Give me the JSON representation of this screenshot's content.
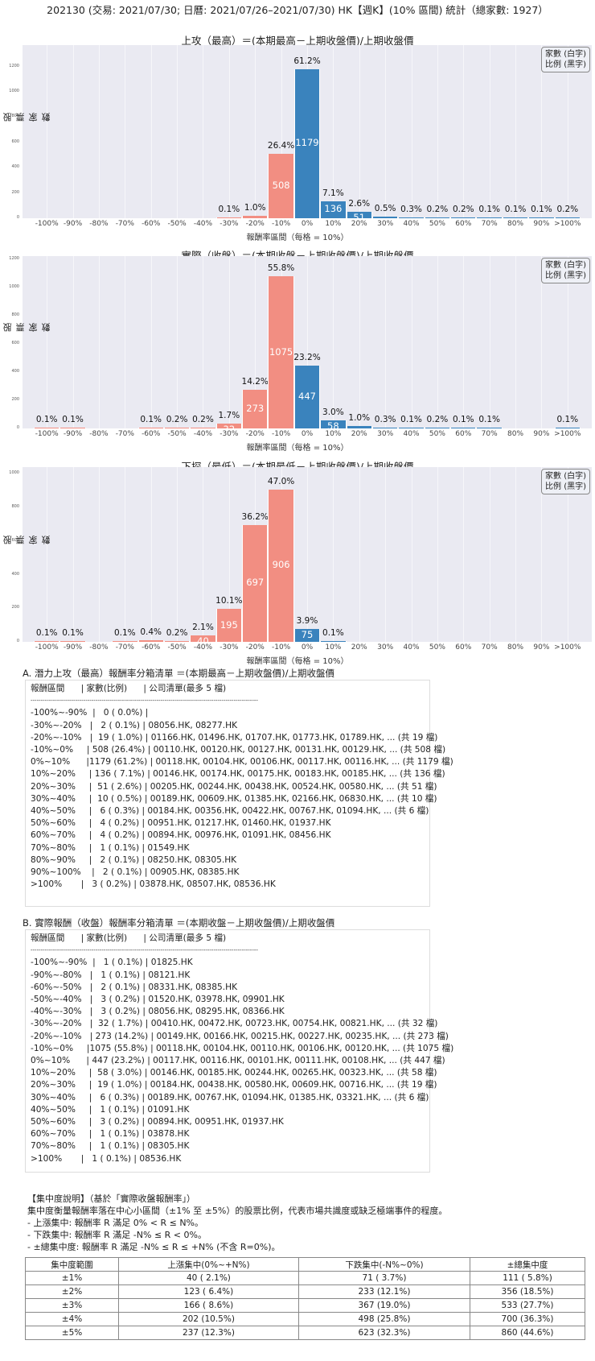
{
  "header": {
    "title": "202130 (交易: 2021/07/30; 日曆: 2021/07/26–2021/07/30) HK【週K】(10% 區間) 統計（總家數: 1927）"
  },
  "colors": {
    "negative": "#f28e82",
    "positive": "#3a83bd",
    "plot_bg": "#eaeaf2"
  },
  "legend": {
    "line1": "家數 (白字)",
    "line2": "比例 (黑字)"
  },
  "chart_data": [
    {
      "type": "bar",
      "title": "上攻（最高）＝(本期最高－上期收盤價)/上期收盤價",
      "xlabel": "報酬率區間（每格 = 10%）",
      "ylabel": "股票家數",
      "categories": [
        "-100%",
        "-90%",
        "-80%",
        "-70%",
        "-60%",
        "-50%",
        "-40%",
        "-30%",
        "-20%",
        "-10%",
        "0%",
        "10%",
        "20%",
        "30%",
        "40%",
        "50%",
        "60%",
        "70%",
        "80%",
        "90%",
        ">100%"
      ],
      "values": [
        0,
        0,
        0,
        0,
        0,
        0,
        0,
        2,
        19,
        508,
        1179,
        136,
        51,
        10,
        6,
        4,
        4,
        1,
        2,
        2,
        3
      ],
      "percent_labels": [
        "",
        "",
        "",
        "",
        "",
        "",
        "",
        "0.1%",
        "1.0%",
        "26.4%",
        "61.2%",
        "7.1%",
        "2.6%",
        "0.5%",
        "0.3%",
        "0.2%",
        "0.2%",
        "0.1%",
        "0.1%",
        "0.1%",
        "0.2%"
      ],
      "yticks": [
        0,
        200,
        400,
        600,
        800,
        1000,
        1200
      ],
      "ylim": [
        0,
        1370
      ],
      "grid": true
    },
    {
      "type": "bar",
      "title": "實際（收盤）＝(本期收盤－上期收盤價)/上期收盤價",
      "xlabel": "報酬率區間（每格 = 10%）",
      "ylabel": "股票家數",
      "categories": [
        "-100%",
        "-90%",
        "-80%",
        "-70%",
        "-60%",
        "-50%",
        "-40%",
        "-30%",
        "-20%",
        "-10%",
        "0%",
        "10%",
        "20%",
        "30%",
        "40%",
        "50%",
        "60%",
        "70%",
        "80%",
        "90%",
        ">100%"
      ],
      "values": [
        1,
        1,
        0,
        0,
        2,
        3,
        3,
        32,
        273,
        1075,
        447,
        58,
        19,
        6,
        1,
        3,
        1,
        1,
        0,
        0,
        1
      ],
      "percent_labels": [
        "0.1%",
        "0.1%",
        "",
        "",
        "0.1%",
        "0.2%",
        "0.2%",
        "1.7%",
        "14.2%",
        "55.8%",
        "23.2%",
        "3.0%",
        "1.0%",
        "0.3%",
        "0.1%",
        "0.2%",
        "0.1%",
        "0.1%",
        "",
        "",
        "0.1%"
      ],
      "yticks": [
        0,
        200,
        400,
        600,
        800,
        1000,
        1200
      ],
      "ylim": [
        0,
        1220
      ],
      "grid": true
    },
    {
      "type": "bar",
      "title": "下探（最低）＝(本期最低－上期收盤價)/上期收盤價",
      "xlabel": "報酬率區間（每格 = 10%）",
      "ylabel": "股票家數",
      "categories": [
        "-100%",
        "-90%",
        "-80%",
        "-70%",
        "-60%",
        "-50%",
        "-40%",
        "-30%",
        "-20%",
        "-10%",
        "0%",
        "10%",
        "20%",
        "30%",
        "40%",
        "50%",
        "60%",
        "70%",
        "80%",
        "90%",
        ">100%"
      ],
      "values": [
        1,
        1,
        0,
        1,
        8,
        3,
        40,
        195,
        697,
        906,
        75,
        1,
        0,
        0,
        0,
        0,
        0,
        0,
        0,
        0,
        0
      ],
      "percent_labels": [
        "0.1%",
        "0.1%",
        "",
        "0.1%",
        "0.4%",
        "0.2%",
        "2.1%",
        "10.1%",
        "36.2%",
        "47.0%",
        "3.9%",
        "0.1%",
        "",
        "",
        "",
        "",
        "",
        "",
        "",
        "",
        ""
      ],
      "yticks": [
        0,
        200,
        400,
        600,
        800,
        1000
      ],
      "ylim": [
        0,
        1040
      ],
      "grid": true
    }
  ],
  "section_a": {
    "title": "A. 潛力上攻（最高）報酬率分箱清單 ＝(本期最高－上期收盤價)/上期收盤價",
    "header": "報酬區間      | 家數(比例)      | 公司清單(最多 5 檔)",
    "divider": "----------------------------------------------------------------------------------------------------------------",
    "rows": [
      "-100%~-90%  |   0 ( 0.0%) |",
      "-30%~-20%   |   2 ( 0.1%) | 08056.HK, 08277.HK",
      "-20%~-10%   |  19 ( 1.0%) | 01166.HK, 01496.HK, 01707.HK, 01773.HK, 01789.HK, ... (共 19 檔)",
      "-10%~0%     | 508 (26.4%) | 00110.HK, 00120.HK, 00127.HK, 00131.HK, 00129.HK, ... (共 508 檔)",
      "0%~10%      |1179 (61.2%) | 00118.HK, 00104.HK, 00106.HK, 00117.HK, 00116.HK, ... (共 1179 檔)",
      "10%~20%     | 136 ( 7.1%) | 00146.HK, 00174.HK, 00175.HK, 00183.HK, 00185.HK, ... (共 136 檔)",
      "20%~30%     |  51 ( 2.6%) | 00205.HK, 00244.HK, 00438.HK, 00524.HK, 00580.HK, ... (共 51 檔)",
      "30%~40%     |  10 ( 0.5%) | 00189.HK, 00609.HK, 01385.HK, 02166.HK, 06830.HK, ... (共 10 檔)",
      "40%~50%     |   6 ( 0.3%) | 00184.HK, 00356.HK, 00422.HK, 00767.HK, 01094.HK, ... (共 6 檔)",
      "50%~60%     |   4 ( 0.2%) | 00951.HK, 01217.HK, 01460.HK, 01937.HK",
      "60%~70%     |   4 ( 0.2%) | 00894.HK, 00976.HK, 01091.HK, 08456.HK",
      "70%~80%     |   1 ( 0.1%) | 01549.HK",
      "80%~90%     |   2 ( 0.1%) | 08250.HK, 08305.HK",
      "90%~100%    |   2 ( 0.1%) | 00905.HK, 08385.HK",
      ">100%       |   3 ( 0.2%) | 03878.HK, 08507.HK, 08536.HK"
    ]
  },
  "section_b": {
    "title": "B. 實際報酬（收盤）報酬率分箱清單 ＝(本期收盤－上期收盤價)/上期收盤價",
    "header": "報酬區間      | 家數(比例)      | 公司清單(最多 5 檔)",
    "divider": "----------------------------------------------------------------------------------------------------------------",
    "rows": [
      "-100%~-90%  |   1 ( 0.1%) | 01825.HK",
      "-90%~-80%   |   1 ( 0.1%) | 08121.HK",
      "-60%~-50%   |   2 ( 0.1%) | 08331.HK, 08385.HK",
      "-50%~-40%   |   3 ( 0.2%) | 01520.HK, 03978.HK, 09901.HK",
      "-40%~-30%   |   3 ( 0.2%) | 08056.HK, 08295.HK, 08366.HK",
      "-30%~-20%   |  32 ( 1.7%) | 00410.HK, 00472.HK, 00723.HK, 00754.HK, 00821.HK, ... (共 32 檔)",
      "-20%~-10%   | 273 (14.2%) | 00149.HK, 00166.HK, 00215.HK, 00227.HK, 00235.HK, ... (共 273 檔)",
      "-10%~0%     |1075 (55.8%) | 00118.HK, 00104.HK, 00110.HK, 00106.HK, 00120.HK, ... (共 1075 檔)",
      "0%~10%      | 447 (23.2%) | 00117.HK, 00116.HK, 00101.HK, 00111.HK, 00108.HK, ... (共 447 檔)",
      "10%~20%     |  58 ( 3.0%) | 00146.HK, 00185.HK, 00244.HK, 00265.HK, 00323.HK, ... (共 58 檔)",
      "20%~30%     |  19 ( 1.0%) | 00184.HK, 00438.HK, 00580.HK, 00609.HK, 00716.HK, ... (共 19 檔)",
      "30%~40%     |   6 ( 0.3%) | 00189.HK, 00767.HK, 01094.HK, 01385.HK, 03321.HK, ... (共 6 檔)",
      "40%~50%     |   1 ( 0.1%) | 01091.HK",
      "50%~60%     |   3 ( 0.2%) | 00894.HK, 00951.HK, 01937.HK",
      "60%~70%     |   1 ( 0.1%) | 03878.HK",
      "70%~80%     |   1 ( 0.1%) | 08305.HK",
      ">100%       |   1 ( 0.1%) | 08536.HK"
    ]
  },
  "concentration": {
    "title": "【集中度說明】（基於「實際收盤報酬率」）",
    "description": "集中度衡量報酬率落在中心小區間（±1% 至 ±5%）的股票比例，代表市場共識度或缺乏極端事件的程度。",
    "bullets": [
      " - 上漲集中: 報酬率 R 滿足 0% < R ≤ N%。",
      " - 下跌集中: 報酬率 R 滿足 -N% ≤ R < 0%。",
      " - ±總集中度: 報酬率 R 滿足 -N% ≤ R ≤ +N% (不含 R=0%)。"
    ],
    "table": {
      "headers": [
        "集中度範圍",
        "上漲集中(0%~+N%)",
        "下跌集中(-N%~0%)",
        "±總集中度"
      ],
      "rows": [
        [
          "±1%",
          "40 ( 2.1%)",
          "71 ( 3.7%)",
          "111 ( 5.8%)"
        ],
        [
          "±2%",
          "123 ( 6.4%)",
          "233 (12.1%)",
          "356 (18.5%)"
        ],
        [
          "±3%",
          "166 ( 8.6%)",
          "367 (19.0%)",
          "533 (27.7%)"
        ],
        [
          "±4%",
          "202 (10.5%)",
          "498 (25.8%)",
          "700 (36.3%)"
        ],
        [
          "±5%",
          "237 (12.3%)",
          "623 (32.3%)",
          "860 (44.6%)"
        ]
      ]
    }
  }
}
